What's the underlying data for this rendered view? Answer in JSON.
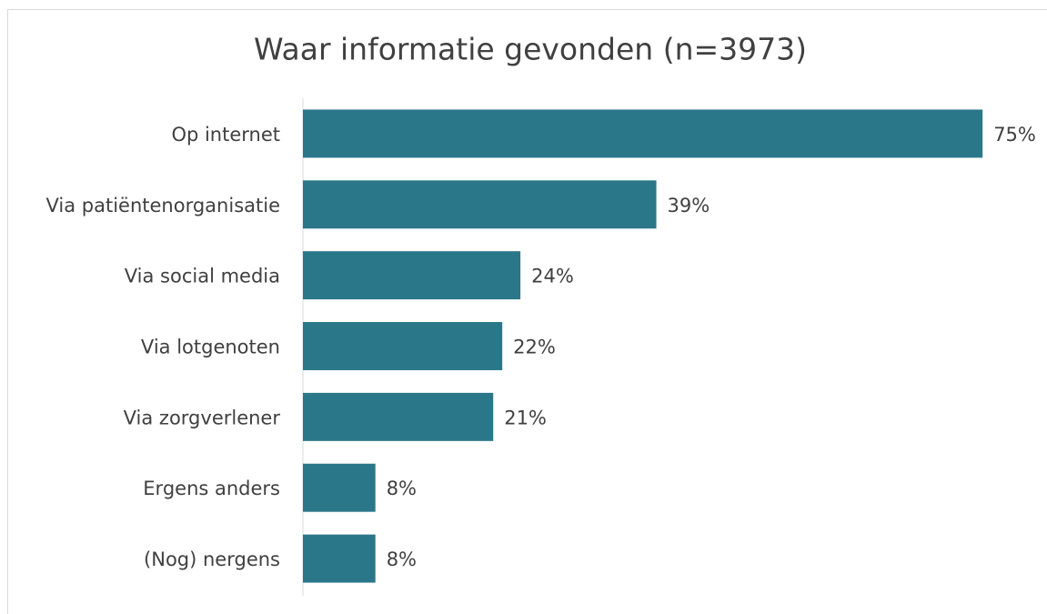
{
  "chart_data": {
    "type": "hbar",
    "title": "Waar informatie gevonden (n=3973)",
    "categories": [
      "Op internet",
      "Via patiëntenorganisatie",
      "Via social media",
      "Via lotgenoten",
      "Via zorgverlener",
      "Ergens anders",
      "(Nog) nergens"
    ],
    "values": [
      75,
      39,
      24,
      22,
      21,
      8,
      8
    ],
    "value_labels": [
      "75%",
      "39%",
      "24%",
      "22%",
      "21%",
      "8%",
      "8%"
    ],
    "color": "#2b778a",
    "xlim": [
      0,
      80
    ]
  }
}
